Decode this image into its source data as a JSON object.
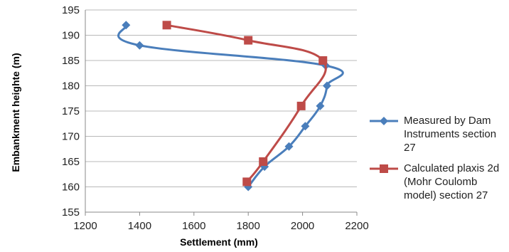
{
  "chart_data": {
    "type": "line",
    "xlabel": "Settlement (mm)",
    "ylabel": "Embankment heighte (m)",
    "xlim": [
      1200,
      2200
    ],
    "ylim": [
      155,
      195
    ],
    "xticks": [
      1200,
      1400,
      1600,
      1800,
      2000,
      2200
    ],
    "yticks": [
      155,
      160,
      165,
      170,
      175,
      180,
      185,
      190,
      195
    ],
    "grid": "horizontal",
    "legend_position": "right",
    "series": [
      {
        "name": "Measured by Dam Instruments section 27",
        "color": "#4a7ebb",
        "marker": "diamond",
        "x": [
          1800,
          1860,
          1950,
          2010,
          2065,
          2090,
          2085,
          1400,
          1350
        ],
        "y": [
          160,
          164,
          168,
          172,
          176,
          180,
          184,
          188,
          192
        ]
      },
      {
        "name": "Calculated plaxis 2d (Mohr Coulomb model) section 27",
        "color": "#be4b48",
        "marker": "square",
        "x": [
          1795,
          1855,
          1995,
          2075,
          1800,
          1500
        ],
        "y": [
          161,
          165,
          176,
          185,
          189,
          192
        ]
      }
    ]
  },
  "legend": {
    "items": [
      "Measured by Dam Instruments section 27",
      "Calculated plaxis 2d (Mohr Coulomb model) section 27"
    ]
  }
}
